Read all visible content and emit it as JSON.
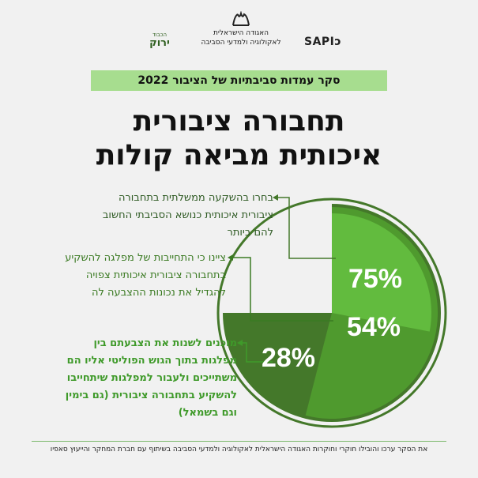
{
  "logos": {
    "left_small": "הכבוד",
    "left_big": "ירוק",
    "center_line1": "האגודה הישראלית",
    "center_line2": "לאקולוגיה ולמדעי הסביבה",
    "right": "SAPIɔ"
  },
  "banner": "סקר עמדות סביבתיות של הציבור 2022",
  "title_line1": "תחבורה ציבורית",
  "title_line2": "איכותית מביאה קולות",
  "annotations": [
    "בחרו בהשקעה ממשלתית בתחבורה ציבורית איכותית כנושא הסביבתי החשוב להם ביותר",
    "ציינו כי התחייבות של מפלגה להשקיע בתחבורה ציבורית איכותית צפויה להגדיל את נכונות ההצבעה לה",
    "מוכנים לשנות את הצבעתם בין מפלגות בתוך הגוש הפוליטי אליו הם משתייכים ולעבור למפלגות שיתחייבו להשקיע בתחבורה ציבורית (גם בימין וגם בשמאל)"
  ],
  "footer": "את הסקר ערכו והובילו חוקרי וחוקרות האגודה הישראלית לאקולוגיה ולמדעי הסביבה בשיתוף עם חברת המחקר והייעוץ סאפיו",
  "colors": {
    "dark": "#44782a",
    "mid": "#4f9a2e",
    "light": "#62bb3e",
    "ring": "#44782a",
    "background": "#f1f1f1"
  },
  "chart_data": {
    "type": "pie",
    "values": [
      75,
      54,
      28
    ],
    "labels": [
      "75%",
      "54%",
      "28%"
    ],
    "unit": "%"
  }
}
